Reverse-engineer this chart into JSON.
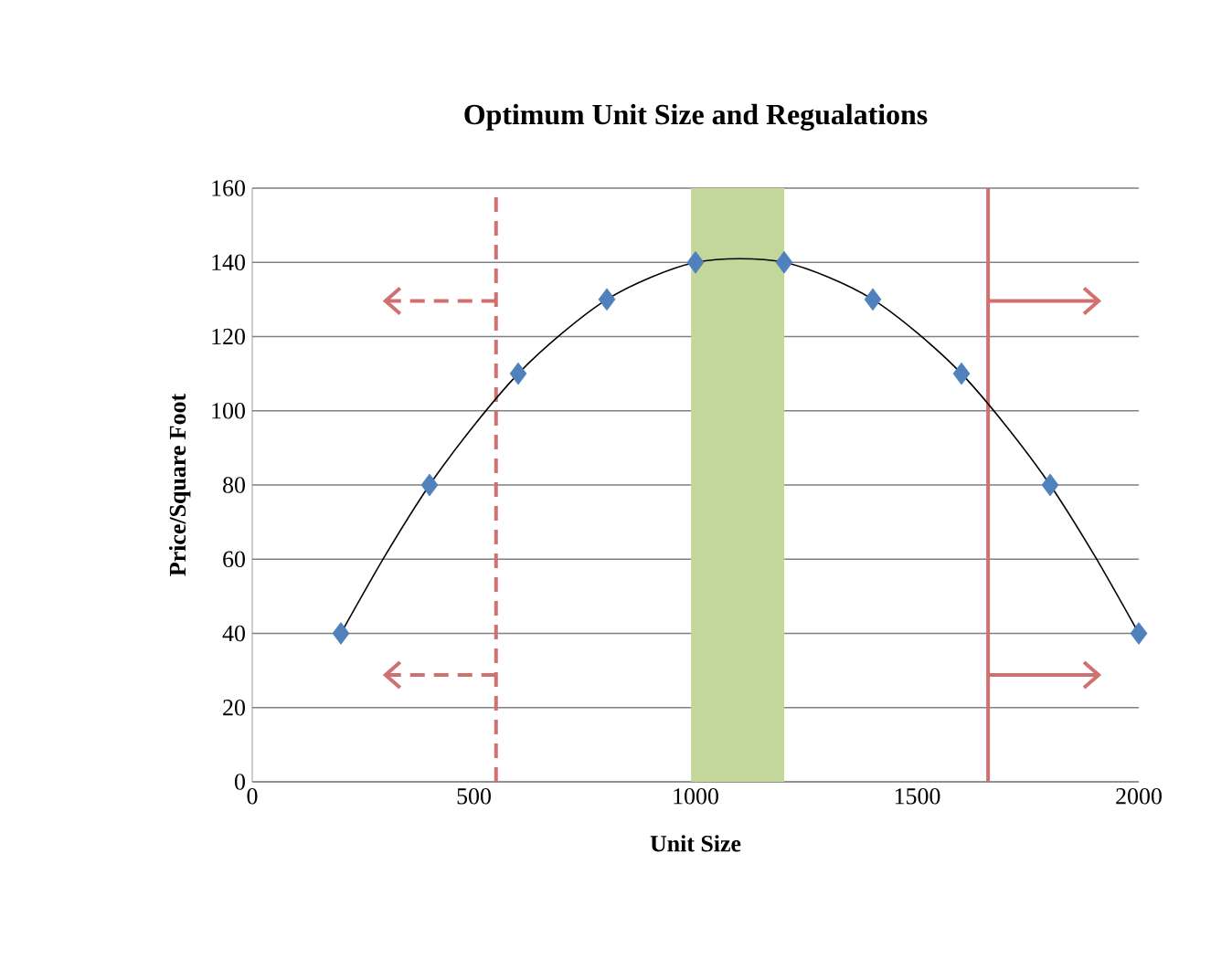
{
  "chart_data": {
    "type": "scatter",
    "title": "Optimum Unit Size and Regualations",
    "xlabel": "Unit Size",
    "ylabel": "Price/Square Foot",
    "xlim": [
      0,
      2000
    ],
    "xticks": [
      0,
      500,
      1000,
      1500,
      2000
    ],
    "ylim": [
      0,
      160
    ],
    "yticks": [
      0,
      20,
      40,
      60,
      80,
      100,
      120,
      140,
      160
    ],
    "grid": "y",
    "marker": "diamond",
    "series": [
      {
        "color": "#4f81bd",
        "x": [
          200,
          400,
          600,
          800,
          1000,
          1200,
          1400,
          1600,
          1800,
          2000
        ],
        "values": [
          40,
          80,
          110,
          130,
          140,
          140,
          130,
          110,
          80,
          40
        ]
      },
      {
        "type": "line",
        "color": "#000000",
        "line_style": "solid",
        "marker": "none",
        "x": [
          200,
          300,
          400,
          500,
          600,
          700,
          800,
          900,
          1000,
          1100,
          1200,
          1300,
          1400,
          1500,
          1600,
          1700,
          1800,
          1900,
          2000
        ],
        "values": [
          40,
          61,
          80,
          96,
          110,
          121,
          130,
          136,
          140,
          141,
          140,
          136,
          130,
          121,
          110,
          96,
          80,
          61,
          40
        ]
      }
    ],
    "bands": [
      {
        "axis": "x",
        "from": 990,
        "to": 1200,
        "color": "#c4d79b"
      }
    ],
    "ref_lines": [
      {
        "axis": "x",
        "value": 550,
        "color": "#d07070",
        "line_style": "dashed"
      },
      {
        "axis": "x",
        "value": 1660,
        "color": "#d07070",
        "line_style": "solid"
      }
    ]
  }
}
